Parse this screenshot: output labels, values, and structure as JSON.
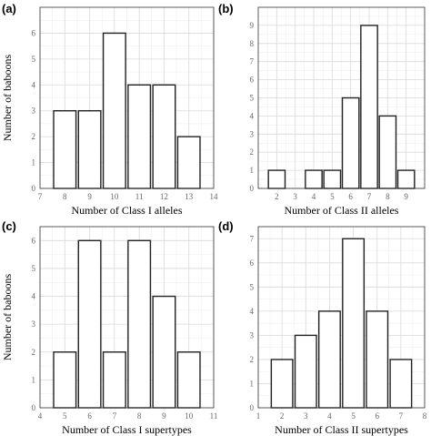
{
  "chart_data": [
    {
      "type": "bar",
      "panel_label": "(a)",
      "xlabel": "Number of Class I alleles",
      "ylabel": "Number of baboons",
      "xlim": [
        7,
        14
      ],
      "ylim": [
        0,
        7
      ],
      "x_ticks": [
        7,
        8,
        9,
        10,
        11,
        12,
        13,
        14
      ],
      "y_ticks": [
        0,
        1,
        2,
        3,
        4,
        5,
        6
      ],
      "x": [
        8,
        9,
        10,
        11,
        12,
        13
      ],
      "values": [
        3,
        3,
        6,
        4,
        4,
        2
      ],
      "grid": true
    },
    {
      "type": "bar",
      "panel_label": "(b)",
      "xlabel": "Number of Class II alleles",
      "ylabel": "",
      "xlim": [
        1,
        10
      ],
      "ylim": [
        0,
        10
      ],
      "x_ticks": [
        2,
        3,
        4,
        5,
        6,
        7,
        8,
        9
      ],
      "y_ticks": [
        0,
        1,
        2,
        3,
        4,
        5,
        6,
        7,
        8,
        9
      ],
      "x": [
        2,
        4,
        5,
        6,
        7,
        8,
        9
      ],
      "values": [
        1,
        1,
        1,
        5,
        9,
        4,
        1
      ],
      "grid": true
    },
    {
      "type": "bar",
      "panel_label": "(c)",
      "xlabel": "Number of Class I supertypes",
      "ylabel": "Number of baboons",
      "xlim": [
        4,
        11
      ],
      "ylim": [
        0,
        6.5
      ],
      "x_ticks": [
        4,
        5,
        6,
        7,
        8,
        9,
        10,
        11
      ],
      "y_ticks": [
        0,
        1,
        2,
        3,
        4,
        5,
        6
      ],
      "x": [
        5,
        6,
        7,
        8,
        9,
        10
      ],
      "values": [
        2,
        6,
        2,
        6,
        4,
        2
      ],
      "grid": true
    },
    {
      "type": "bar",
      "panel_label": "(d)",
      "xlabel": "Number of Class II supertypes",
      "ylabel": "",
      "xlim": [
        1,
        8
      ],
      "ylim": [
        0,
        7.5
      ],
      "x_ticks": [
        1,
        2,
        3,
        4,
        5,
        6,
        7,
        8
      ],
      "y_ticks": [
        0,
        1,
        2,
        3,
        4,
        5,
        6,
        7
      ],
      "x": [
        2,
        3,
        4,
        5,
        6,
        7
      ],
      "values": [
        2,
        3,
        4,
        7,
        4,
        2
      ],
      "grid": true
    }
  ]
}
